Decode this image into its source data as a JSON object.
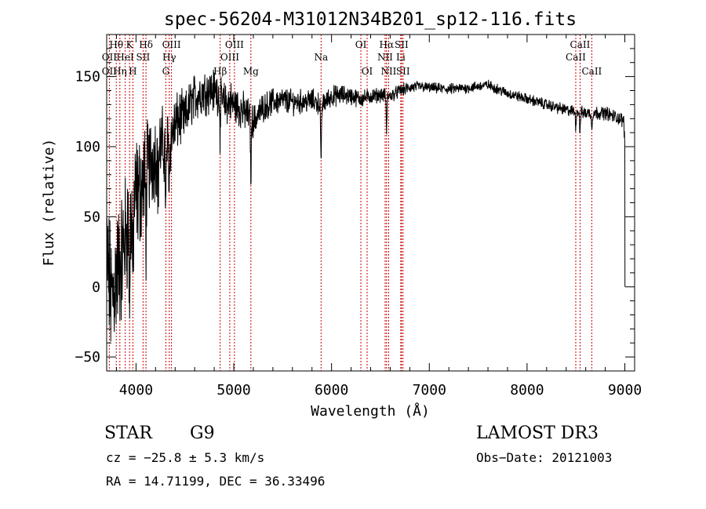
{
  "chart_data": {
    "type": "line",
    "title": "spec-56204-M31012N34B201_sp12-116.fits",
    "xlabel": "Wavelength (Å)",
    "ylabel": "Flux (relative)",
    "xlim": [
      3700,
      9100
    ],
    "ylim": [
      -60,
      180
    ],
    "x_ticks": [
      4000,
      5000,
      6000,
      7000,
      8000,
      9000
    ],
    "x_tick_labels": [
      "4000",
      "5000",
      "6000",
      "7000",
      "8000",
      "9000"
    ],
    "y_ticks": [
      -50,
      0,
      50,
      100,
      150
    ],
    "y_tick_labels": [
      "−50",
      "0",
      "50",
      "100",
      "150"
    ],
    "x_minor_step": 200,
    "y_minor_step": 10,
    "series": [
      {
        "name": "flux",
        "anchors": [
          [
            3700,
            20
          ],
          [
            3750,
            -10
          ],
          [
            3800,
            10
          ],
          [
            3850,
            20
          ],
          [
            3900,
            40
          ],
          [
            3950,
            50
          ],
          [
            4000,
            65
          ],
          [
            4050,
            70
          ],
          [
            4100,
            80
          ],
          [
            4150,
            90
          ],
          [
            4200,
            95
          ],
          [
            4250,
            100
          ],
          [
            4300,
            100
          ],
          [
            4350,
            105
          ],
          [
            4400,
            115
          ],
          [
            4450,
            120
          ],
          [
            4500,
            120
          ],
          [
            4550,
            130
          ],
          [
            4600,
            135
          ],
          [
            4650,
            138
          ],
          [
            4700,
            140
          ],
          [
            4750,
            140
          ],
          [
            4800,
            140
          ],
          [
            4850,
            138
          ],
          [
            4900,
            130
          ],
          [
            4950,
            132
          ],
          [
            5000,
            130
          ],
          [
            5050,
            128
          ],
          [
            5100,
            125
          ],
          [
            5150,
            122
          ],
          [
            5200,
            118
          ],
          [
            5300,
            128
          ],
          [
            5400,
            132
          ],
          [
            5500,
            133
          ],
          [
            5600,
            132
          ],
          [
            5700,
            132
          ],
          [
            5800,
            133
          ],
          [
            5900,
            130
          ],
          [
            6000,
            136
          ],
          [
            6100,
            137
          ],
          [
            6200,
            136
          ],
          [
            6300,
            134
          ],
          [
            6400,
            136
          ],
          [
            6500,
            137
          ],
          [
            6600,
            136
          ],
          [
            6700,
            140
          ],
          [
            6800,
            142
          ],
          [
            6900,
            143
          ],
          [
            7000,
            142
          ],
          [
            7200,
            141
          ],
          [
            7400,
            142
          ],
          [
            7600,
            144
          ],
          [
            7800,
            138
          ],
          [
            8000,
            134
          ],
          [
            8200,
            130
          ],
          [
            8400,
            126
          ],
          [
            8600,
            124
          ],
          [
            8800,
            124
          ],
          [
            8950,
            120
          ],
          [
            8990,
            118
          ],
          [
            9000,
            100
          ]
        ],
        "noise": [
          [
            3700,
            40
          ],
          [
            4000,
            35
          ],
          [
            4200,
            25
          ],
          [
            4500,
            14
          ],
          [
            5000,
            12
          ],
          [
            5300,
            8
          ],
          [
            6000,
            6
          ],
          [
            6500,
            4
          ],
          [
            7000,
            3
          ],
          [
            8000,
            3
          ],
          [
            9000,
            4
          ]
        ],
        "absorption_dips": [
          [
            3934,
            60
          ],
          [
            3968,
            55
          ],
          [
            4102,
            40
          ],
          [
            4227,
            30
          ],
          [
            4305,
            50
          ],
          [
            4340,
            30
          ],
          [
            4861,
            25
          ],
          [
            5175,
            40
          ],
          [
            5893,
            45
          ],
          [
            6563,
            25
          ],
          [
            8498,
            10
          ],
          [
            8542,
            15
          ],
          [
            8662,
            12
          ]
        ],
        "end_drop": [
          [
            9000,
            100
          ],
          [
            9001,
            0
          ]
        ]
      }
    ],
    "lines": [
      {
        "label": "Hθ",
        "wl": 3798,
        "row": 1
      },
      {
        "label": "OII",
        "wl": 3727,
        "row": 2
      },
      {
        "label": "Hη",
        "wl": 3835,
        "row": 3
      },
      {
        "label": "OII",
        "wl": 3727,
        "row": 3
      },
      {
        "label": "K",
        "wl": 3934,
        "row": 1
      },
      {
        "label": "HeI",
        "wl": 3889,
        "row": 2
      },
      {
        "label": "H",
        "wl": 3968,
        "row": 3
      },
      {
        "label": "Hδ",
        "wl": 4102,
        "row": 1
      },
      {
        "label": "SII",
        "wl": 4072,
        "row": 2
      },
      {
        "label": "OIII",
        "wl": 4363,
        "row": 1
      },
      {
        "label": "Hγ",
        "wl": 4340,
        "row": 2
      },
      {
        "label": "G",
        "wl": 4305,
        "row": 3
      },
      {
        "label": "Hβ",
        "wl": 4861,
        "row": 3
      },
      {
        "label": "OIII",
        "wl": 5007,
        "row": 1
      },
      {
        "label": "OIII",
        "wl": 4959,
        "row": 2
      },
      {
        "label": "Mg",
        "wl": 5175,
        "row": 3
      },
      {
        "label": "Na",
        "wl": 5893,
        "row": 2
      },
      {
        "label": "OI",
        "wl": 6300,
        "row": 1
      },
      {
        "label": "OI",
        "wl": 6364,
        "row": 3
      },
      {
        "label": "Hα",
        "wl": 6563,
        "row": 1
      },
      {
        "label": "NII",
        "wl": 6548,
        "row": 2
      },
      {
        "label": "NII",
        "wl": 6584,
        "row": 3
      },
      {
        "label": "SII",
        "wl": 6716,
        "row": 1
      },
      {
        "label": "Li",
        "wl": 6708,
        "row": 2
      },
      {
        "label": "SII",
        "wl": 6731,
        "row": 3
      },
      {
        "label": "CaII",
        "wl": 8542,
        "row": 1
      },
      {
        "label": "CaII",
        "wl": 8498,
        "row": 2
      },
      {
        "label": "CaII",
        "wl": 8662,
        "row": 3
      }
    ],
    "colors": {
      "spectrum": "#000000",
      "lines": "#cc0000",
      "axes": "#000000"
    }
  },
  "info": {
    "class": "STAR",
    "subclass": "G9",
    "survey": "LAMOST DR3",
    "cz": "cz = −25.8 ± 5.3 km/s",
    "obs_date": "Obs−Date: 20121003",
    "radec": "RA =  14.71199, DEC =  36.33496"
  }
}
